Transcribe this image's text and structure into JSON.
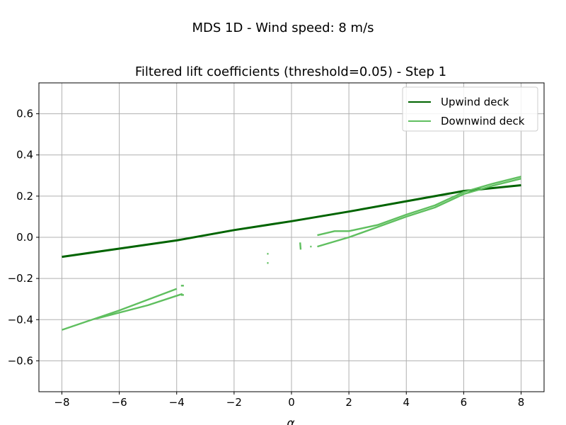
{
  "figure": {
    "suptitle": "MDS 1D - Wind speed: 8 m/s"
  },
  "chart_data": {
    "type": "line",
    "title": "Filtered lift coefficients (threshold=0.05) - Step 1",
    "xlabel": "α",
    "ylabel": "",
    "xlim": [
      -8.8,
      8.8
    ],
    "ylim": [
      -0.75,
      0.75
    ],
    "xticks": [
      -8,
      -6,
      -4,
      -2,
      0,
      2,
      4,
      6,
      8
    ],
    "xtick_labels": [
      "−8",
      "−6",
      "−4",
      "−2",
      "0",
      "2",
      "4",
      "6",
      "8"
    ],
    "yticks": [
      -0.6,
      -0.4,
      -0.2,
      0.0,
      0.2,
      0.4,
      0.6
    ],
    "ytick_labels": [
      "−0.6",
      "−0.4",
      "−0.2",
      "0.0",
      "0.2",
      "0.4",
      "0.6"
    ],
    "grid": true,
    "legend_position": "top-right",
    "series": [
      {
        "name": "Upwind deck",
        "color": "#006400",
        "segments": [
          {
            "x": [
              -8,
              -6,
              -4,
              -2,
              0,
              2,
              4,
              6,
              8
            ],
            "y": [
              -0.095,
              -0.055,
              -0.015,
              0.035,
              0.078,
              0.125,
              0.175,
              0.225,
              0.253
            ]
          }
        ]
      },
      {
        "name": "Downwind deck",
        "color": "#5fbf5f",
        "segments": [
          {
            "x": [
              -8,
              -6,
              -4
            ],
            "y": [
              -0.45,
              -0.355,
              -0.25
            ]
          },
          {
            "x": [
              -6.8,
              -5,
              -3.8
            ],
            "y": [
              -0.395,
              -0.33,
              -0.275
            ]
          },
          {
            "x": [
              -3.85,
              -3.75
            ],
            "y": [
              -0.235,
              -0.235
            ]
          },
          {
            "x": [
              -3.85,
              -3.75
            ],
            "y": [
              -0.28,
              -0.28
            ]
          },
          {
            "x": [
              -0.85,
              -0.8
            ],
            "y": [
              -0.08,
              -0.08
            ]
          },
          {
            "x": [
              -0.85,
              -0.8
            ],
            "y": [
              -0.125,
              -0.125
            ]
          },
          {
            "x": [
              0.3,
              0.32
            ],
            "y": [
              -0.025,
              -0.06
            ]
          },
          {
            "x": [
              0.65,
              0.7
            ],
            "y": [
              -0.045,
              -0.045
            ]
          },
          {
            "x": [
              0.9,
              1.5,
              2.0,
              3.0,
              4.0,
              5.0,
              6.0,
              7.0,
              8.0
            ],
            "y": [
              0.01,
              0.03,
              0.03,
              0.06,
              0.11,
              0.155,
              0.22,
              0.26,
              0.295
            ]
          },
          {
            "x": [
              0.9,
              2.0,
              3.0,
              4.0,
              5.0,
              6.0,
              7.0,
              8.0
            ],
            "y": [
              -0.045,
              0.0,
              0.05,
              0.1,
              0.145,
              0.21,
              0.25,
              0.285
            ]
          }
        ]
      }
    ]
  }
}
